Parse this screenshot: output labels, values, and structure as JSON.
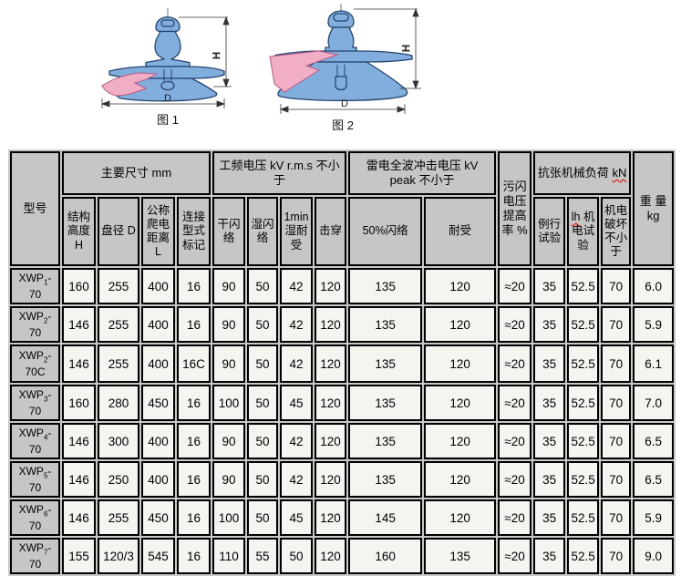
{
  "figures": [
    {
      "caption": "图 1",
      "h_label": "H",
      "d_label": "D"
    },
    {
      "caption": "图 2",
      "h_label": "H",
      "d_label": "D"
    }
  ],
  "table": {
    "headers": {
      "model": "型号",
      "dims_group": "主要尺寸  mm",
      "pf_group": "工频电压 kV r.m.s 不小\n于",
      "li_group": "雷电全波冲击电压 kV\npeak 不小于",
      "pollution": "污闪\n电压\n提高\n率  %",
      "tensile_text": "抗张机械负荷 ",
      "tensile_unit": "kN",
      "weight": "重 量\nkg",
      "sub": {
        "height": "结构\n高度\nH",
        "disc_d": "盘径 D",
        "creepage": "公称\n爬电\n距离\nL",
        "coupling": "连接\n型式\n标记",
        "dry_fo": "干闪\n络",
        "wet_fo": "湿闪\n络",
        "wet_withstand": "1min\n湿耐\n受",
        "puncture": "击穿",
        "fo50": "50%闪络",
        "withstand": "耐受",
        "routine": "例行\n试验",
        "mech_pre": "lh",
        "mech_rest": " 机\n电试\n验",
        "failing": "机电\n破坏\n不小\n于"
      }
    },
    "rows": [
      {
        "model": {
          "base": "XWP",
          "sub": "1",
          "suffix": "-70",
          "tail": ""
        },
        "values": [
          "160",
          "255",
          "400",
          "16",
          "90",
          "50",
          "42",
          "120",
          "135",
          "120",
          "≈20",
          "35",
          "52.5",
          "70",
          "6.0"
        ]
      },
      {
        "model": {
          "base": "XWP",
          "sub": "2",
          "suffix": "-70",
          "tail": ""
        },
        "values": [
          "146",
          "255",
          "400",
          "16",
          "90",
          "50",
          "42",
          "120",
          "135",
          "120",
          "≈20",
          "35",
          "52.5",
          "70",
          "5.9"
        ]
      },
      {
        "model": {
          "base": "XWP",
          "sub": "2",
          "suffix": "-70",
          "tail": "C"
        },
        "values": [
          "146",
          "255",
          "400",
          "16C",
          "90",
          "50",
          "42",
          "120",
          "135",
          "120",
          "≈20",
          "35",
          "52.5",
          "70",
          "6.1"
        ]
      },
      {
        "model": {
          "base": "XWP",
          "sub": "3",
          "suffix": "-70",
          "tail": ""
        },
        "values": [
          "160",
          "280",
          "450",
          "16",
          "100",
          "50",
          "45",
          "120",
          "135",
          "120",
          "≈20",
          "35",
          "52.5",
          "70",
          "7.0"
        ]
      },
      {
        "model": {
          "base": "XWP",
          "sub": "4",
          "suffix": "-70",
          "tail": ""
        },
        "values": [
          "146",
          "300",
          "400",
          "16",
          "90",
          "50",
          "42",
          "120",
          "135",
          "120",
          "≈20",
          "35",
          "52.5",
          "70",
          "6.5"
        ]
      },
      {
        "model": {
          "base": "XWP",
          "sub": "5",
          "suffix": "-70",
          "tail": ""
        },
        "values": [
          "146",
          "250",
          "400",
          "16",
          "90",
          "50",
          "42",
          "120",
          "135",
          "120",
          "≈20",
          "35",
          "52.5",
          "70",
          "6.5"
        ]
      },
      {
        "model": {
          "base": "XWP",
          "sub": "6",
          "suffix": "-70",
          "tail": ""
        },
        "values": [
          "146",
          "255",
          "450",
          "16",
          "100",
          "50",
          "45",
          "120",
          "145",
          "120",
          "≈20",
          "35",
          "52.5",
          "70",
          "5.9"
        ]
      },
      {
        "model": {
          "base": "XWP",
          "sub": "7",
          "suffix": "-70",
          "tail": ""
        },
        "values": [
          "155",
          "120/3",
          "545",
          "16",
          "110",
          "55",
          "50",
          "120",
          "160",
          "135",
          "≈20",
          "35",
          "52.5",
          "70",
          "9.0"
        ]
      }
    ]
  }
}
